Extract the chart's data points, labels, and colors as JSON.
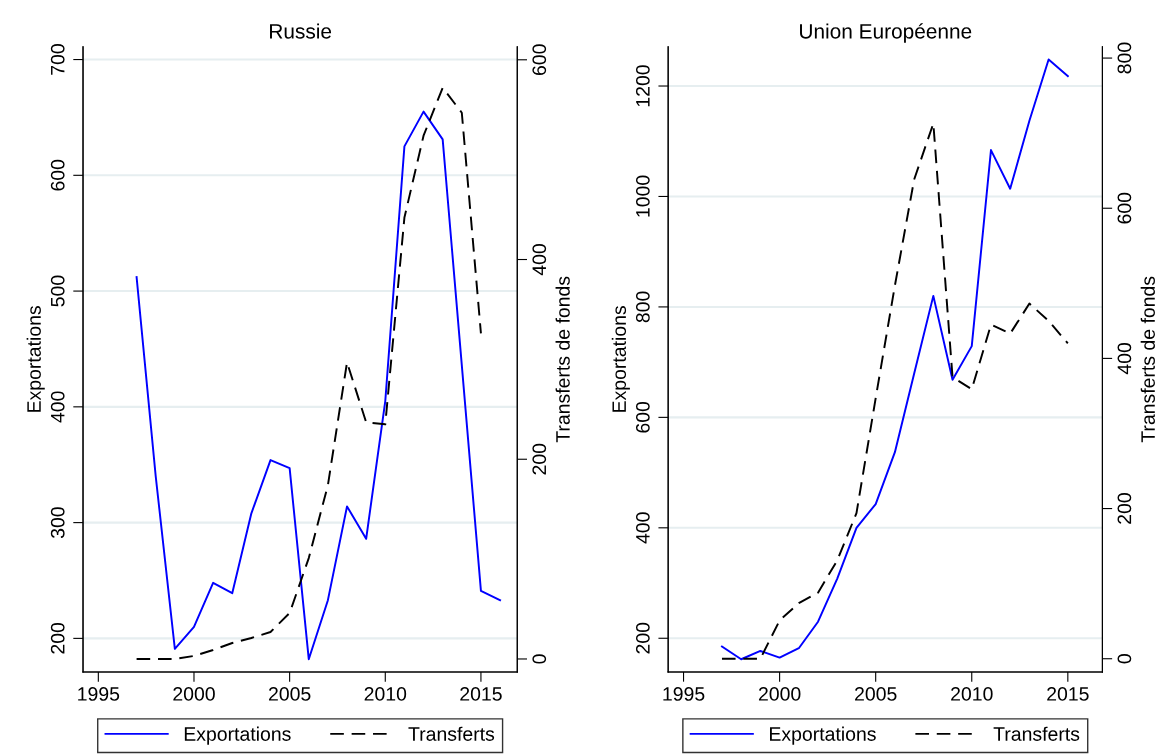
{
  "chart_data": [
    {
      "type": "line",
      "title": "Russie",
      "ylabel": "Exportations",
      "y2label": "Transferts de fonds",
      "x": [
        1997,
        1998,
        1999,
        2000,
        2001,
        2002,
        2003,
        2004,
        2005,
        2006,
        2007,
        2008,
        2009,
        2010,
        2011,
        2012,
        2013,
        2014,
        2015
      ],
      "series": [
        {
          "name": "Exportations",
          "color": "#0000ff",
          "line_style": "solid",
          "x": [
            1997,
            1998,
            1999,
            2000,
            2001,
            2002,
            2003,
            2004,
            2005,
            2006,
            2007,
            2008,
            2009,
            2010,
            2011,
            2012,
            2013,
            2015,
            2016
          ],
          "values": [
            512,
            340,
            191,
            210,
            248,
            239,
            308,
            354,
            347,
            182,
            233,
            314,
            286,
            405,
            625,
            655,
            631,
            241,
            233
          ]
        },
        {
          "name": "Transferts",
          "color": "#000000",
          "line_style": "dashed",
          "axis": "y2",
          "values": [
            0,
            0,
            0,
            3,
            9,
            16,
            21,
            27,
            46,
            101,
            174,
            297,
            237,
            235,
            442,
            524,
            572,
            547,
            326
          ]
        }
      ],
      "xlim": [
        1994.2,
        2016.9
      ],
      "xticks": [
        1995,
        2000,
        2005,
        2010,
        2015
      ],
      "ylim": [
        171,
        711
      ],
      "yticks": [
        200,
        300,
        400,
        500,
        600,
        700
      ],
      "y2lim": [
        -13,
        613
      ],
      "y2ticks": [
        0,
        200,
        400,
        600
      ],
      "grid": "y",
      "legend": "bottom",
      "marker": "none"
    },
    {
      "type": "line",
      "title": "Union Européenne",
      "ylabel": "Exportations",
      "y2label": "Transferts de fonds",
      "x": [
        1997,
        1998,
        1999,
        2000,
        2001,
        2002,
        2003,
        2004,
        2005,
        2006,
        2007,
        2008,
        2009,
        2010,
        2011,
        2012,
        2013,
        2014,
        2015
      ],
      "series": [
        {
          "name": "Exportations",
          "color": "#0000ff",
          "line_style": "solid",
          "values": [
            185,
            162,
            177,
            165,
            182,
            230,
            308,
            400,
            443,
            537,
            679,
            820,
            668,
            729,
            1084,
            1014,
            1137,
            1248,
            1218
          ]
        },
        {
          "name": "Transferts",
          "color": "#000000",
          "line_style": "dashed",
          "axis": "y2",
          "values": [
            0,
            0,
            0,
            51,
            74,
            88,
            131,
            194,
            347,
            497,
            638,
            713,
            375,
            359,
            445,
            433,
            473,
            450,
            420
          ]
        }
      ],
      "xlim": [
        1994.2,
        2016.8
      ],
      "xticks": [
        1995,
        2000,
        2005,
        2010,
        2015
      ],
      "ylim": [
        139,
        1271
      ],
      "yticks": [
        200,
        400,
        600,
        800,
        1000,
        1200
      ],
      "y2lim": [
        -17.6,
        815
      ],
      "y2ticks": [
        0,
        200,
        400,
        600,
        800
      ],
      "grid": "y",
      "legend": "bottom",
      "marker": "none"
    }
  ]
}
